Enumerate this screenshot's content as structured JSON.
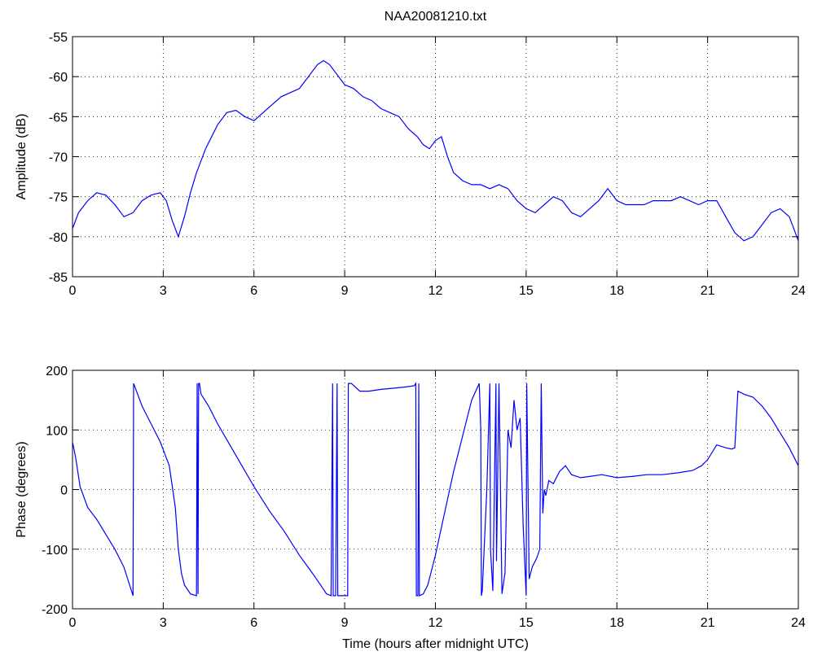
{
  "chart_data": [
    {
      "type": "line",
      "title": "NAA20081210.txt",
      "xlabel": "",
      "ylabel": "Amplitude (dB)",
      "xlim": [
        0,
        24
      ],
      "ylim": [
        -85,
        -55
      ],
      "xticks": [
        0,
        3,
        6,
        9,
        12,
        15,
        18,
        21,
        24
      ],
      "yticks": [
        -55,
        -60,
        -65,
        -70,
        -75,
        -80,
        -85
      ],
      "grid": true,
      "series_color": "#0000ff",
      "x": [
        0,
        0.2,
        0.5,
        0.8,
        1.1,
        1.4,
        1.7,
        2.0,
        2.3,
        2.6,
        2.9,
        3.1,
        3.3,
        3.5,
        3.7,
        3.9,
        4.1,
        4.4,
        4.8,
        5.1,
        5.4,
        5.7,
        6.0,
        6.3,
        6.6,
        6.9,
        7.2,
        7.5,
        7.8,
        8.1,
        8.3,
        8.5,
        8.7,
        9.0,
        9.3,
        9.6,
        9.9,
        10.2,
        10.5,
        10.8,
        11.1,
        11.4,
        11.6,
        11.8,
        12.0,
        12.2,
        12.4,
        12.6,
        12.9,
        13.2,
        13.5,
        13.8,
        14.1,
        14.4,
        14.7,
        15.0,
        15.3,
        15.6,
        15.9,
        16.2,
        16.5,
        16.8,
        17.1,
        17.4,
        17.7,
        18.0,
        18.3,
        18.6,
        18.9,
        19.2,
        19.5,
        19.8,
        20.1,
        20.4,
        20.7,
        21.0,
        21.3,
        21.6,
        21.9,
        22.2,
        22.5,
        22.8,
        23.1,
        23.4,
        23.7,
        24.0
      ],
      "values": [
        -79,
        -77,
        -75.5,
        -74.5,
        -74.8,
        -76,
        -77.5,
        -77,
        -75.5,
        -74.8,
        -74.5,
        -75.5,
        -78,
        -80,
        -77.5,
        -74.5,
        -72,
        -69,
        -66,
        -64.5,
        -64.2,
        -65,
        -65.5,
        -64.5,
        -63.5,
        -62.5,
        -62,
        -61.5,
        -60,
        -58.5,
        -58,
        -58.5,
        -59.5,
        -61,
        -61.5,
        -62.5,
        -63,
        -64,
        -64.5,
        -65,
        -66.5,
        -67.5,
        -68.5,
        -69,
        -68,
        -67.5,
        -70,
        -72,
        -73,
        -73.5,
        -73.5,
        -74,
        -73.5,
        -74,
        -75.5,
        -76.5,
        -77,
        -76,
        -75,
        -75.5,
        -77,
        -77.5,
        -76.5,
        -75.5,
        -74,
        -75.5,
        -76,
        -76,
        -76,
        -75.5,
        -75.5,
        -75.5,
        -75,
        -75.5,
        -76,
        -75.5,
        -75.5,
        -77.5,
        -79.5,
        -80.5,
        -80,
        -78.5,
        -77,
        -76.5,
        -77.5,
        -80.5
      ]
    },
    {
      "type": "line",
      "title": "",
      "xlabel": "Time (hours after midnight UTC)",
      "ylabel": "Phase (degrees)",
      "xlim": [
        0,
        24
      ],
      "ylim": [
        -200,
        200
      ],
      "xticks": [
        0,
        3,
        6,
        9,
        12,
        15,
        18,
        21,
        24
      ],
      "yticks": [
        200,
        100,
        0,
        -100,
        -200
      ],
      "grid": true,
      "series_color": "#0000ff",
      "x": [
        0,
        0.1,
        0.25,
        0.5,
        0.8,
        1.1,
        1.4,
        1.7,
        1.95,
        2.0,
        2.02,
        2.3,
        2.6,
        2.9,
        3.2,
        3.4,
        3.5,
        3.6,
        3.7,
        3.9,
        4.1,
        4.12,
        4.15,
        4.17,
        4.2,
        4.22,
        4.25,
        4.5,
        4.8,
        5.2,
        5.6,
        6.0,
        6.5,
        7.0,
        7.5,
        8.0,
        8.4,
        8.55,
        8.6,
        8.62,
        8.7,
        8.75,
        8.77,
        8.8,
        9.1,
        9.12,
        9.2,
        9.22,
        9.5,
        9.8,
        10.2,
        10.6,
        11.0,
        11.3,
        11.35,
        11.37,
        11.42,
        11.45,
        11.47,
        11.6,
        11.75,
        12.0,
        12.3,
        12.6,
        12.9,
        13.2,
        13.45,
        13.5,
        13.52,
        13.55,
        13.7,
        13.8,
        13.82,
        13.9,
        14.0,
        14.02,
        14.1,
        14.2,
        14.3,
        14.4,
        14.5,
        14.6,
        14.7,
        14.8,
        14.9,
        15.0,
        15.02,
        15.1,
        15.2,
        15.35,
        15.45,
        15.5,
        15.55,
        15.6,
        15.65,
        15.75,
        15.9,
        16.1,
        16.3,
        16.5,
        16.8,
        17.1,
        17.5,
        18.0,
        18.5,
        19.0,
        19.5,
        20.0,
        20.5,
        20.8,
        21.0,
        21.3,
        21.6,
        21.8,
        21.9,
        22.0,
        22.2,
        22.5,
        22.8,
        23.1,
        23.4,
        23.7,
        24.0
      ],
      "values": [
        80,
        55,
        5,
        -30,
        -50,
        -75,
        -100,
        -130,
        -170,
        -178,
        178,
        140,
        110,
        80,
        40,
        -30,
        -100,
        -140,
        -160,
        -175,
        -178,
        178,
        -175,
        178,
        178,
        170,
        160,
        140,
        110,
        75,
        40,
        5,
        -35,
        -70,
        -110,
        -145,
        -175,
        -178,
        178,
        -178,
        -178,
        178,
        -178,
        -178,
        -178,
        178,
        178,
        178,
        165,
        165,
        168,
        170,
        172,
        174,
        178,
        -178,
        -178,
        178,
        -178,
        -175,
        -160,
        -110,
        -40,
        30,
        90,
        150,
        178,
        100,
        -178,
        -170,
        0,
        178,
        -100,
        -170,
        178,
        -120,
        178,
        -175,
        -140,
        100,
        70,
        150,
        100,
        120,
        -60,
        -178,
        178,
        -150,
        -130,
        -115,
        -100,
        178,
        -40,
        0,
        -10,
        15,
        10,
        30,
        40,
        25,
        20,
        22,
        25,
        20,
        22,
        25,
        25,
        28,
        32,
        40,
        50,
        75,
        70,
        68,
        70,
        165,
        160,
        155,
        140,
        120,
        95,
        70,
        40
      ]
    }
  ]
}
